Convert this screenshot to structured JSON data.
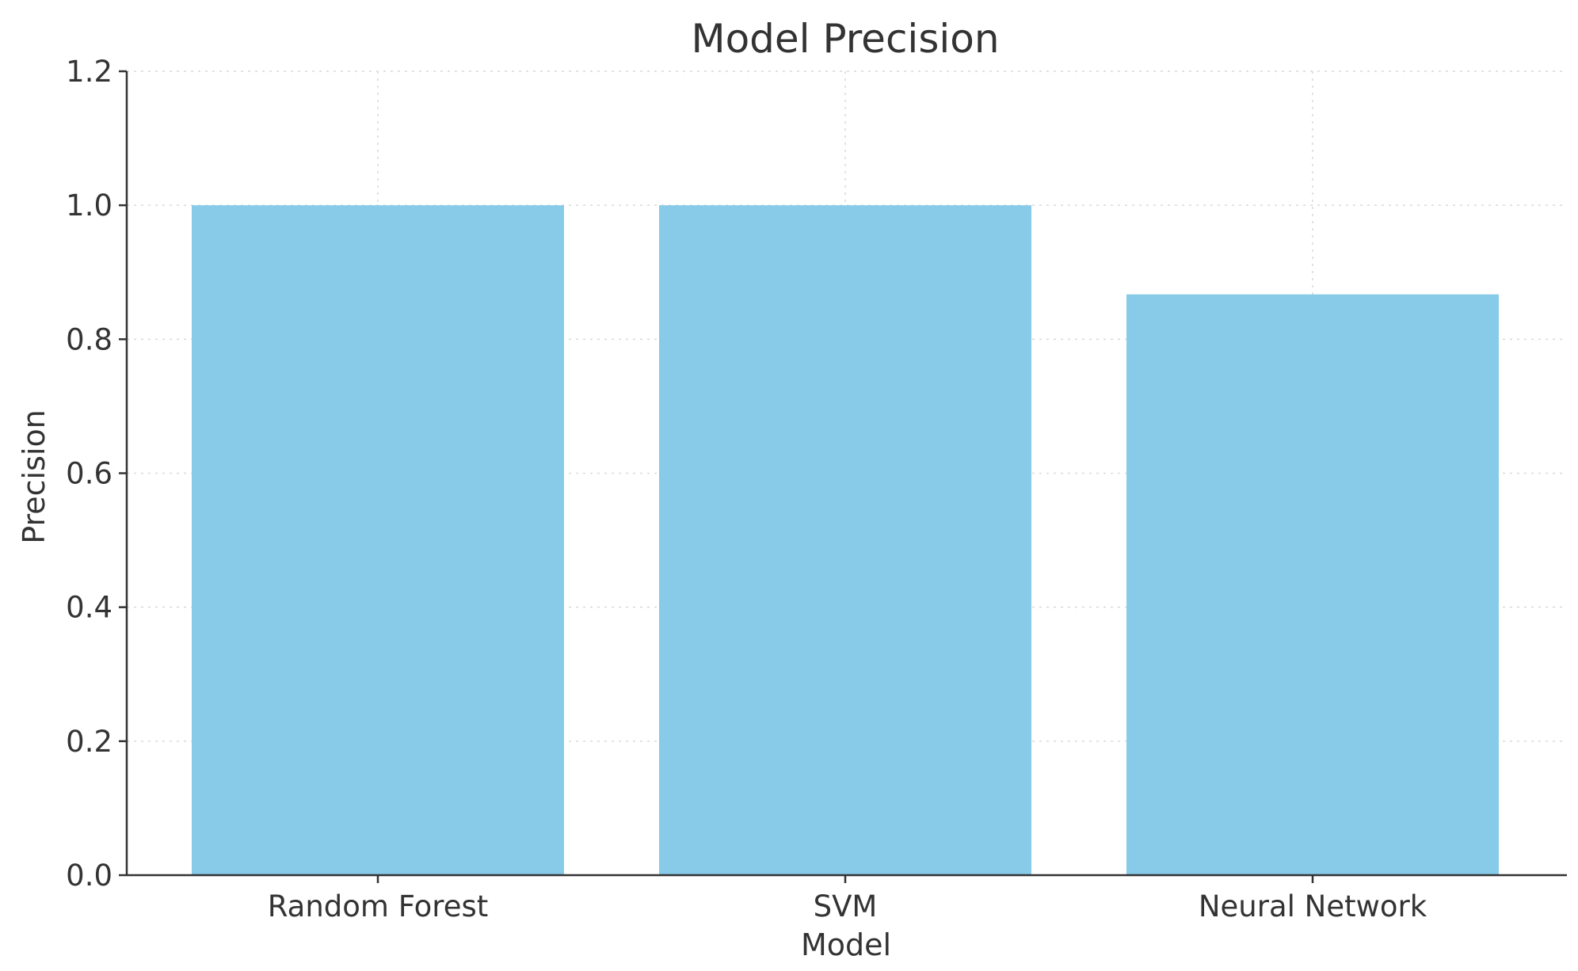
{
  "chart_data": {
    "type": "bar",
    "title": "Model Precision",
    "xlabel": "Model",
    "ylabel": "Precision",
    "categories": [
      "Random Forest",
      "SVM",
      "Neural Network"
    ],
    "values": [
      1.0,
      1.0,
      0.867
    ],
    "ylim": [
      0,
      1.2
    ],
    "yticks": [
      0.0,
      0.2,
      0.4,
      0.6,
      0.8,
      1.0,
      1.2
    ],
    "ytick_labels": [
      "0.0",
      "0.2",
      "0.4",
      "0.6",
      "0.8",
      "1.0",
      "1.2"
    ],
    "grid": true,
    "bar_color": "#87CBE8",
    "axis_color": "#333333"
  }
}
